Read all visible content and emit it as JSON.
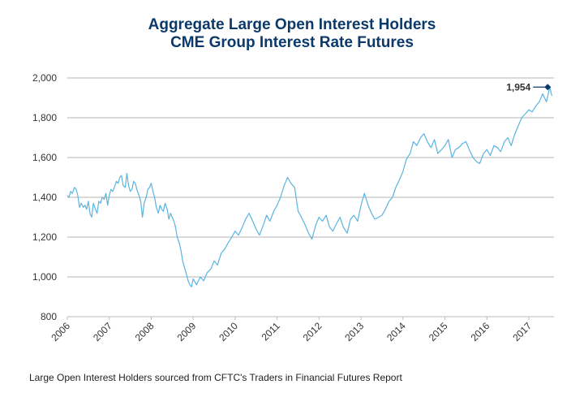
{
  "chart_data": {
    "type": "line",
    "title": "Aggregate Large Open Interest Holders",
    "subtitle": "CME Group Interest Rate Futures",
    "xlabel": "",
    "ylabel": "",
    "ylim": [
      800,
      2000
    ],
    "xlim": [
      2006,
      2017.55
    ],
    "yticks": [
      800,
      1000,
      1200,
      1400,
      1600,
      1800,
      2000
    ],
    "ytick_labels": [
      "800",
      "1,000",
      "1,200",
      "1,400",
      "1,600",
      "1,800",
      "2,000"
    ],
    "xticks": [
      2006,
      2007,
      2008,
      2009,
      2010,
      2011,
      2012,
      2013,
      2014,
      2015,
      2016,
      2017
    ],
    "xtick_labels": [
      "2006",
      "2007",
      "2008",
      "2009",
      "2010",
      "2011",
      "2012",
      "2013",
      "2014",
      "2015",
      "2016",
      "2017"
    ],
    "grid": true,
    "series": [
      {
        "name": "Large Open Interest Holders",
        "color": "#5ab4e0",
        "x": [
          2006.0,
          2006.04,
          2006.08,
          2006.12,
          2006.17,
          2006.21,
          2006.25,
          2006.29,
          2006.33,
          2006.38,
          2006.42,
          2006.46,
          2006.5,
          2006.54,
          2006.58,
          2006.62,
          2006.67,
          2006.71,
          2006.75,
          2006.79,
          2006.83,
          2006.88,
          2006.92,
          2006.96,
          2007.0,
          2007.04,
          2007.08,
          2007.12,
          2007.17,
          2007.21,
          2007.25,
          2007.29,
          2007.33,
          2007.38,
          2007.42,
          2007.46,
          2007.5,
          2007.54,
          2007.58,
          2007.62,
          2007.67,
          2007.71,
          2007.75,
          2007.79,
          2007.83,
          2007.88,
          2007.92,
          2007.96,
          2008.0,
          2008.04,
          2008.08,
          2008.12,
          2008.17,
          2008.21,
          2008.25,
          2008.29,
          2008.33,
          2008.38,
          2008.42,
          2008.46,
          2008.5,
          2008.54,
          2008.58,
          2008.62,
          2008.67,
          2008.71,
          2008.75,
          2008.79,
          2008.83,
          2008.88,
          2008.92,
          2008.96,
          2009.0,
          2009.08,
          2009.17,
          2009.25,
          2009.33,
          2009.42,
          2009.5,
          2009.58,
          2009.67,
          2009.75,
          2009.83,
          2009.92,
          2010.0,
          2010.08,
          2010.17,
          2010.25,
          2010.33,
          2010.42,
          2010.5,
          2010.58,
          2010.67,
          2010.75,
          2010.83,
          2010.92,
          2011.0,
          2011.08,
          2011.17,
          2011.25,
          2011.33,
          2011.42,
          2011.5,
          2011.58,
          2011.67,
          2011.75,
          2011.83,
          2011.92,
          2012.0,
          2012.08,
          2012.17,
          2012.25,
          2012.33,
          2012.42,
          2012.5,
          2012.58,
          2012.67,
          2012.75,
          2012.83,
          2012.92,
          2013.0,
          2013.08,
          2013.17,
          2013.25,
          2013.33,
          2013.42,
          2013.5,
          2013.58,
          2013.67,
          2013.75,
          2013.83,
          2013.92,
          2014.0,
          2014.08,
          2014.17,
          2014.25,
          2014.33,
          2014.42,
          2014.5,
          2014.58,
          2014.67,
          2014.75,
          2014.83,
          2014.92,
          2015.0,
          2015.08,
          2015.17,
          2015.25,
          2015.33,
          2015.42,
          2015.5,
          2015.58,
          2015.67,
          2015.75,
          2015.83,
          2015.92,
          2016.0,
          2016.08,
          2016.17,
          2016.25,
          2016.33,
          2016.42,
          2016.5,
          2016.58,
          2016.67,
          2016.75,
          2016.83,
          2016.92,
          2017.0,
          2017.08,
          2017.17,
          2017.25,
          2017.33,
          2017.42,
          2017.5,
          2017.55
        ],
        "values": [
          1410,
          1400,
          1430,
          1420,
          1450,
          1440,
          1410,
          1350,
          1370,
          1350,
          1360,
          1340,
          1380,
          1320,
          1300,
          1370,
          1340,
          1320,
          1380,
          1370,
          1400,
          1390,
          1420,
          1360,
          1410,
          1440,
          1430,
          1450,
          1480,
          1470,
          1500,
          1510,
          1460,
          1450,
          1520,
          1460,
          1430,
          1440,
          1480,
          1470,
          1430,
          1410,
          1380,
          1300,
          1370,
          1400,
          1440,
          1450,
          1470,
          1430,
          1400,
          1350,
          1320,
          1360,
          1340,
          1330,
          1370,
          1340,
          1290,
          1320,
          1300,
          1280,
          1250,
          1200,
          1170,
          1130,
          1080,
          1050,
          1020,
          980,
          960,
          950,
          990,
          960,
          1000,
          980,
          1020,
          1040,
          1080,
          1060,
          1120,
          1140,
          1170,
          1200,
          1230,
          1210,
          1250,
          1290,
          1320,
          1280,
          1240,
          1210,
          1260,
          1310,
          1280,
          1330,
          1360,
          1400,
          1460,
          1500,
          1470,
          1450,
          1330,
          1300,
          1260,
          1220,
          1190,
          1260,
          1300,
          1280,
          1310,
          1250,
          1230,
          1270,
          1300,
          1250,
          1220,
          1290,
          1310,
          1280,
          1360,
          1420,
          1360,
          1320,
          1290,
          1300,
          1310,
          1340,
          1380,
          1400,
          1450,
          1490,
          1530,
          1590,
          1620,
          1680,
          1660,
          1700,
          1720,
          1680,
          1650,
          1690,
          1620,
          1640,
          1660,
          1690,
          1600,
          1640,
          1650,
          1670,
          1680,
          1640,
          1600,
          1580,
          1570,
          1620,
          1640,
          1610,
          1660,
          1650,
          1630,
          1680,
          1700,
          1660,
          1720,
          1760,
          1800,
          1820,
          1840,
          1830,
          1860,
          1880,
          1920,
          1880,
          1954,
          1910
        ]
      }
    ],
    "annotations": [
      {
        "text": "1,954",
        "x": 2017.45,
        "y": 1954,
        "marker": "diamond",
        "color": "#0b3a6a"
      }
    ]
  },
  "footer": {
    "source": "Large Open Interest Holders sourced from CFTC's Traders in Financial Futures Report"
  }
}
